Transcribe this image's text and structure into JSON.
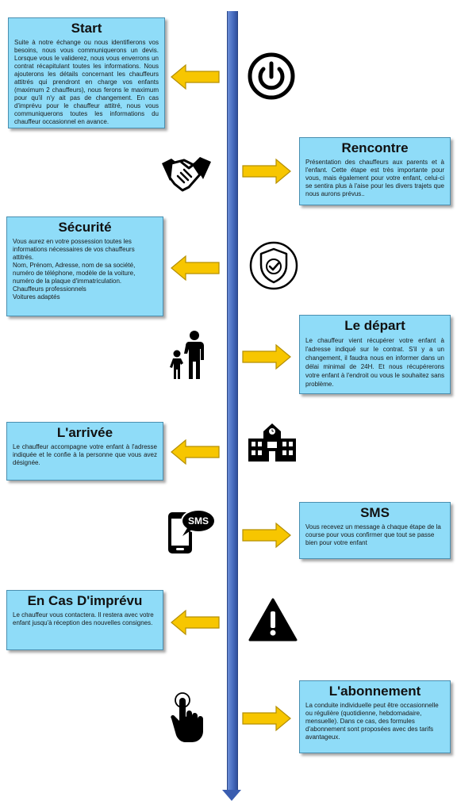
{
  "steps": [
    {
      "title": "Start",
      "text": "Suite à notre échange ou nous identifierons vos besoins, nous vous communiquerons un devis. Lorsque vous le validerez, nous vous enverrons un contrat récapitulant toutes les informations. Nous ajouterons les détails concernant les chauffeurs attitrés qui prendront en charge vos enfants (maximum 2 chauffeurs), nous ferons le maximum pour qu'il n'y ait pas de changement. En cas d'imprévu pour le chauffeur attitré, nous vous communiquerons toutes les informations du chauffeur occasionnel en avance.",
      "icon": "power-icon"
    },
    {
      "title": "Rencontre",
      "text": "Présentation des chauffeurs aux parents et à l'enfant. Cette étape est très importante pour vous, mais également pour votre enfant, celui-ci se sentira plus à l'aise pour les divers trajets que nous aurons prévus..",
      "icon": "handshake-icon"
    },
    {
      "title": "Sécurité",
      "lines": [
        "Vous aurez en votre possession toutes les informations nécessaires de vos chauffeurs attitrés.",
        "Nom, Prénom, Adresse, nom de sa société, numéro de téléphone, modèle de la voiture, numéro de la plaque d'immatriculation.",
        "Chauffeurs professionnels",
        "Voitures adaptés"
      ],
      "icon": "shield-check-icon"
    },
    {
      "title": "Le départ",
      "text": "Le chauffeur vient récupérer votre enfant à l'adresse indiqué sur le contrat. S'il y a un changement, il faudra nous en informer dans un délai minimal de 24H. Et nous récupérerons votre enfant à l'endroit ou vous le souhaitez sans problème.",
      "icon": "parent-child-icon"
    },
    {
      "title": "L'arrivée",
      "text": "Le chauffeur accompagne votre enfant à l'adresse indiquée et le confie à la personne que vous avez désignée.",
      "icon": "school-building-icon"
    },
    {
      "title": "SMS",
      "text": "Vous recevez un message à chaque étape de la course pour vous confirmer que tout se passe bien pour votre enfant",
      "icon": "sms-phone-icon",
      "icon_label": "SMS"
    },
    {
      "title": "En Cas D'imprévu",
      "text": "Le chauffeur vous contactera. Il restera avec votre enfant jusqu'à réception des nouvelles consignes.",
      "icon": "warning-icon"
    },
    {
      "title": "L'abonnement",
      "text": "La conduite individuelle peut être occasionnelle ou régulière (quotidienne, hebdomadaire, mensuelle). Dans ce cas, des formules d'abonnement sont proposées avec des tarifs avantageux.",
      "icon": "pointer-hand-icon"
    }
  ],
  "colors": {
    "card_fill": "#8fdcf8",
    "arrow_fill": "#f7c600",
    "timeline": "#4a6fc2"
  }
}
